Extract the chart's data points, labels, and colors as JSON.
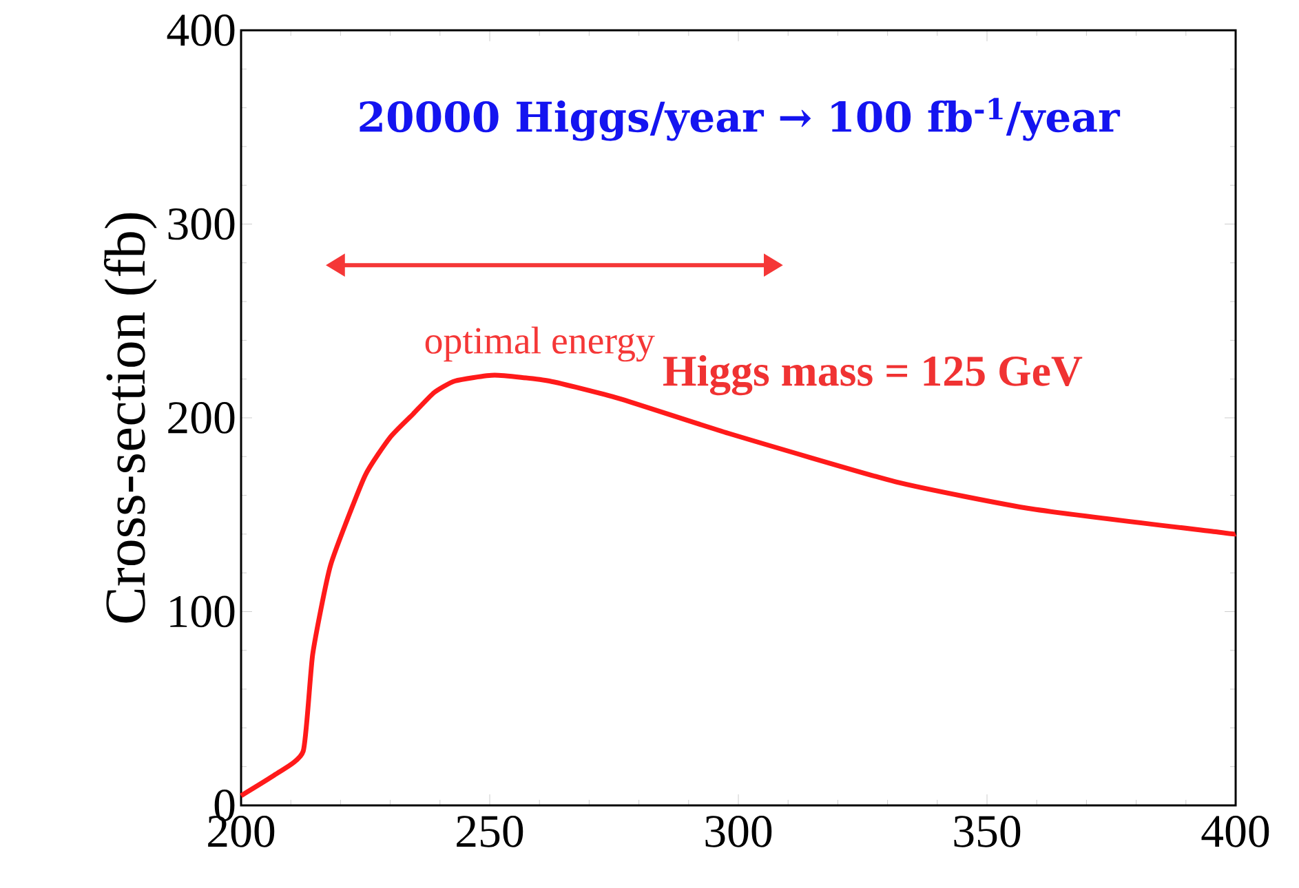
{
  "chart_data": {
    "type": "line",
    "ylabel": "Cross-section (fb)",
    "x": [
      200,
      206.9,
      212.5,
      214.4,
      218,
      224.9,
      230,
      234.6,
      238.8,
      243,
      251,
      262,
      276,
      298,
      331.6,
      359,
      396.5,
      400
    ],
    "series": [
      {
        "color": "#ff1a1a",
        "values": [
          5,
          16,
          28,
          78,
          124,
          170,
          190,
          202,
          213,
          219,
          222,
          219,
          210,
          192,
          167,
          153,
          141,
          140
        ]
      }
    ],
    "xlim": [
      200,
      400
    ],
    "ylim": [
      0,
      400
    ],
    "xticks": [
      200,
      250,
      300,
      350,
      400
    ],
    "yticks": [
      0,
      100,
      200,
      300,
      400
    ],
    "annotations": [
      "20000 Higgs/year → 100 fb$^{-1}$/year",
      "**Higgs mass = 125 GeV**",
      "optimal energy"
    ],
    "grid": false,
    "marker": "none",
    "line_style": "solid"
  }
}
